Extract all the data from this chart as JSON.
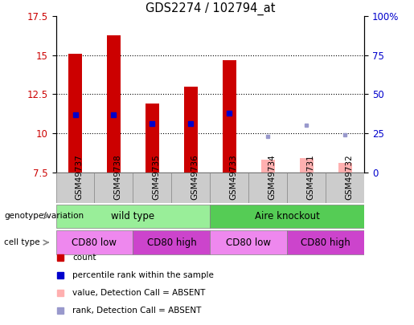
{
  "title": "GDS2274 / 102794_at",
  "samples": [
    "GSM49737",
    "GSM49738",
    "GSM49735",
    "GSM49736",
    "GSM49733",
    "GSM49734",
    "GSM49731",
    "GSM49732"
  ],
  "count_values": [
    15.1,
    16.3,
    11.9,
    13.0,
    14.7,
    null,
    null,
    null
  ],
  "count_absent_values": [
    null,
    null,
    null,
    null,
    null,
    8.3,
    8.4,
    8.1
  ],
  "percentile_present": [
    11.2,
    11.2,
    10.6,
    10.6,
    11.3,
    null,
    null,
    null
  ],
  "percentile_absent": [
    null,
    null,
    null,
    null,
    null,
    9.8,
    10.5,
    9.9
  ],
  "ylim": [
    7.5,
    17.5
  ],
  "yticks_left": [
    7.5,
    10.0,
    12.5,
    15.0,
    17.5
  ],
  "yticks_right": [
    0,
    25,
    50,
    75,
    100
  ],
  "bar_bottom": 7.5,
  "bar_color_present": "#cc0000",
  "bar_color_absent": "#ffb0b0",
  "dot_color_present": "#0000cc",
  "dot_color_absent": "#9999cc",
  "tick_label_color_left": "#cc0000",
  "tick_label_color_right": "#0000cc",
  "genotype_groups": [
    {
      "label": "wild type",
      "start": 0,
      "end": 4,
      "color": "#99ee99"
    },
    {
      "label": "Aire knockout",
      "start": 4,
      "end": 8,
      "color": "#55cc55"
    }
  ],
  "celltype_groups": [
    {
      "label": "CD80 low",
      "start": 0,
      "end": 2,
      "color": "#ee88ee"
    },
    {
      "label": "CD80 high",
      "start": 2,
      "end": 4,
      "color": "#cc44cc"
    },
    {
      "label": "CD80 low",
      "start": 4,
      "end": 6,
      "color": "#ee88ee"
    },
    {
      "label": "CD80 high",
      "start": 6,
      "end": 8,
      "color": "#cc44cc"
    }
  ],
  "legend_items": [
    {
      "label": "count",
      "color": "#cc0000"
    },
    {
      "label": "percentile rank within the sample",
      "color": "#0000cc"
    },
    {
      "label": "value, Detection Call = ABSENT",
      "color": "#ffb0b0"
    },
    {
      "label": "rank, Detection Call = ABSENT",
      "color": "#9999cc"
    }
  ],
  "row_label_geno": "genotype/variation",
  "row_label_cell": "cell type",
  "dotted_lines": [
    10.0,
    12.5,
    15.0
  ],
  "bar_width": 0.35
}
